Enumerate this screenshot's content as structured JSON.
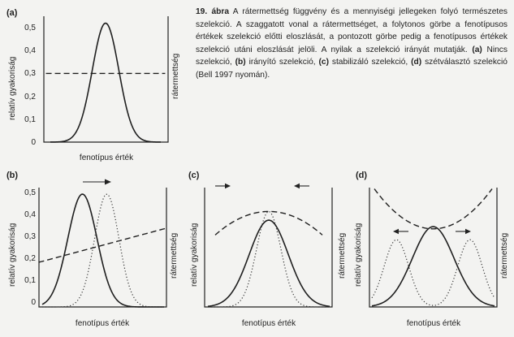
{
  "caption": {
    "number": "19. ábra",
    "text_1": "A rátermettség függvény és a mennyiségi jellegeken folyó természetes szelekció. A szaggatott vonal a rátermettséget, a folytonos görbe a fenotípusos értékek szelekció előtti eloszlását, a pontozott görbe pedig a fenotípusos értékek szelekció utáni eloszlását jelöli. A nyilak a szelekció irányát mutatják.",
    "a_letter": "(a)",
    "a_text": "Nincs szelekció,",
    "b_letter": "(b)",
    "b_text": "irányító szelekció,",
    "c_letter": "(c)",
    "c_text": "stabilizáló szelekció,",
    "d_letter": "(d)",
    "d_text": "szétválasztó szelekció",
    "source": "(Bell 1997 nyomán)."
  },
  "labels": {
    "relative_frequency": "relatív gyakoriság",
    "fitness": "rátermettség",
    "phenotype_value": "fenotípus érték"
  },
  "panels": {
    "a": {
      "letter": "(a)"
    },
    "b": {
      "letter": "(b)"
    },
    "c": {
      "letter": "(c)"
    },
    "d": {
      "letter": "(d)"
    }
  },
  "y_ticks": [
    "0,5",
    "0,4",
    "0,3",
    "0,2",
    "0,1",
    "0"
  ],
  "chart_data": [
    {
      "panel": "a",
      "type": "line",
      "ylim": [
        0,
        0.55
      ],
      "y_ticks": [
        0,
        0.1,
        0.2,
        0.3,
        0.4,
        0.5
      ],
      "series": [
        {
          "style": "solid",
          "kind": "gaussian",
          "mean": 0.5,
          "peak": 0.52,
          "sd": 0.12
        },
        {
          "style": "dashed",
          "kind": "constant",
          "value": 0.3
        }
      ]
    },
    {
      "panel": "b",
      "type": "line",
      "ylim": [
        0,
        0.55
      ],
      "y_ticks": [
        0,
        0.1,
        0.2,
        0.3,
        0.4,
        0.5
      ],
      "arrows": [
        {
          "direction": "right"
        }
      ],
      "series": [
        {
          "style": "solid",
          "kind": "gaussian",
          "mean": 0.33,
          "peak": 0.52,
          "sd": 0.12
        },
        {
          "style": "dotted",
          "kind": "gaussian",
          "mean": 0.53,
          "peak": 0.52,
          "sd": 0.1
        },
        {
          "style": "dashed",
          "kind": "linear",
          "from": 0.21,
          "to": 0.36
        }
      ]
    },
    {
      "panel": "c",
      "type": "line",
      "ylim": [
        0,
        0.55
      ],
      "arrows": [
        {
          "direction": "right"
        },
        {
          "direction": "left"
        }
      ],
      "series": [
        {
          "style": "solid",
          "kind": "gaussian",
          "mean": 0.5,
          "peak": 0.4,
          "sd": 0.16
        },
        {
          "style": "dotted",
          "kind": "gaussian",
          "mean": 0.5,
          "peak": 0.44,
          "sd": 0.1
        },
        {
          "style": "dashed",
          "kind": "parabola",
          "vertex": 0.5,
          "top": 0.44,
          "edge": 0.3
        }
      ]
    },
    {
      "panel": "d",
      "type": "line",
      "ylim": [
        0,
        0.55
      ],
      "arrows": [
        {
          "direction": "left"
        },
        {
          "direction": "right"
        }
      ],
      "series": [
        {
          "style": "solid",
          "kind": "gaussian",
          "mean": 0.5,
          "peak": 0.37,
          "sd": 0.17
        },
        {
          "style": "dotted",
          "kind": "bimodal",
          "mean": 0.5,
          "peak": 0.31,
          "offset": 0.3,
          "sd": 0.1
        },
        {
          "style": "dashed",
          "kind": "parabola",
          "vertex": 0.5,
          "top": 0.36,
          "edge": 0.56
        }
      ]
    }
  ]
}
